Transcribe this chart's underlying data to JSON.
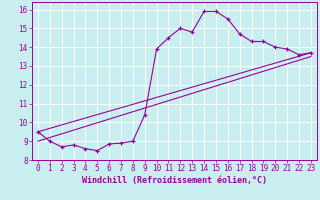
{
  "title": "",
  "xlabel": "Windchill (Refroidissement éolien,°C)",
  "ylabel": "",
  "bg_color": "#c8eef0",
  "grid_color": "#ffffff",
  "line_color": "#990099",
  "marker": "+",
  "xlim": [
    -0.5,
    23.5
  ],
  "ylim": [
    8,
    16.4
  ],
  "xticks": [
    0,
    1,
    2,
    3,
    4,
    5,
    6,
    7,
    8,
    9,
    10,
    11,
    12,
    13,
    14,
    15,
    16,
    17,
    18,
    19,
    20,
    21,
    22,
    23
  ],
  "yticks": [
    8,
    9,
    10,
    11,
    12,
    13,
    14,
    15,
    16
  ],
  "curve_x": [
    0,
    1,
    2,
    3,
    4,
    5,
    6,
    7,
    8,
    9,
    10,
    11,
    12,
    13,
    14,
    15,
    16,
    17,
    18,
    19,
    20,
    21,
    22,
    23
  ],
  "curve_y": [
    9.5,
    9.0,
    8.7,
    8.8,
    8.6,
    8.5,
    8.85,
    8.9,
    9.0,
    10.4,
    13.9,
    14.5,
    15.0,
    14.8,
    15.9,
    15.9,
    15.5,
    14.7,
    14.3,
    14.3,
    14.0,
    13.9,
    13.6,
    13.7
  ],
  "line1_x": [
    0,
    23
  ],
  "line1_y": [
    9.5,
    13.7
  ],
  "line2_x": [
    0,
    23
  ],
  "line2_y": [
    9.0,
    13.5
  ],
  "tick_fontsize": 5.5,
  "xlabel_fontsize": 6,
  "lw": 0.8
}
